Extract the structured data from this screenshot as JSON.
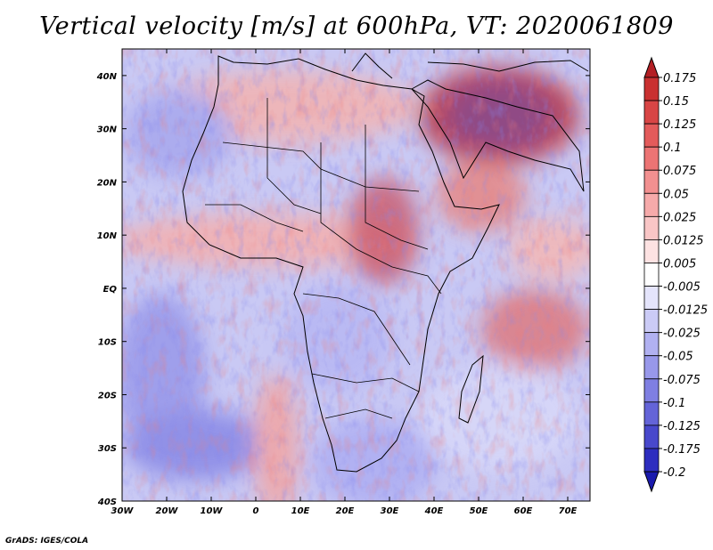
{
  "footer": "GrADS: IGES/COLA",
  "chart_data": {
    "type": "heatmap",
    "title": "Vertical velocity [m/s] at 600hPa, VT: 2020061809",
    "variable": "Vertical velocity",
    "units": "m/s",
    "level": "600hPa",
    "valid_time": "2020061809",
    "xlim": [
      -30,
      75
    ],
    "ylim": [
      -40,
      45
    ],
    "xticks": [
      {
        "value": -30,
        "label": "30W"
      },
      {
        "value": -20,
        "label": "20W"
      },
      {
        "value": -10,
        "label": "10W"
      },
      {
        "value": 0,
        "label": "0"
      },
      {
        "value": 10,
        "label": "10E"
      },
      {
        "value": 20,
        "label": "20E"
      },
      {
        "value": 30,
        "label": "30E"
      },
      {
        "value": 40,
        "label": "40E"
      },
      {
        "value": 50,
        "label": "50E"
      },
      {
        "value": 60,
        "label": "60E"
      },
      {
        "value": 70,
        "label": "70E"
      }
    ],
    "yticks": [
      {
        "value": 40,
        "label": "40N"
      },
      {
        "value": 30,
        "label": "30N"
      },
      {
        "value": 20,
        "label": "20N"
      },
      {
        "value": 10,
        "label": "10N"
      },
      {
        "value": 0,
        "label": "EQ"
      },
      {
        "value": -10,
        "label": "10S"
      },
      {
        "value": -20,
        "label": "20S"
      },
      {
        "value": -30,
        "label": "30S"
      },
      {
        "value": -40,
        "label": "40S"
      }
    ],
    "colorbar": {
      "labels": [
        "0.175",
        "0.15",
        "0.125",
        "0.1",
        "0.075",
        "0.05",
        "0.025",
        "0.0125",
        "0.005",
        "-0.005",
        "-0.0125",
        "-0.025",
        "-0.05",
        "-0.075",
        "-0.1",
        "-0.125",
        "-0.175",
        "-0.2"
      ],
      "colors": [
        "#b31f24",
        "#c93131",
        "#d84545",
        "#e35b5b",
        "#ec7474",
        "#f29090",
        "#f6aaaa",
        "#f9c6c6",
        "#fde2e2",
        "#ffffff",
        "#e4e4fb",
        "#cbcbf6",
        "#b1b1f1",
        "#9898ea",
        "#7f7fe2",
        "#6464d8",
        "#4848cc",
        "#2d2dbf",
        "#1a1aad"
      ]
    }
  }
}
